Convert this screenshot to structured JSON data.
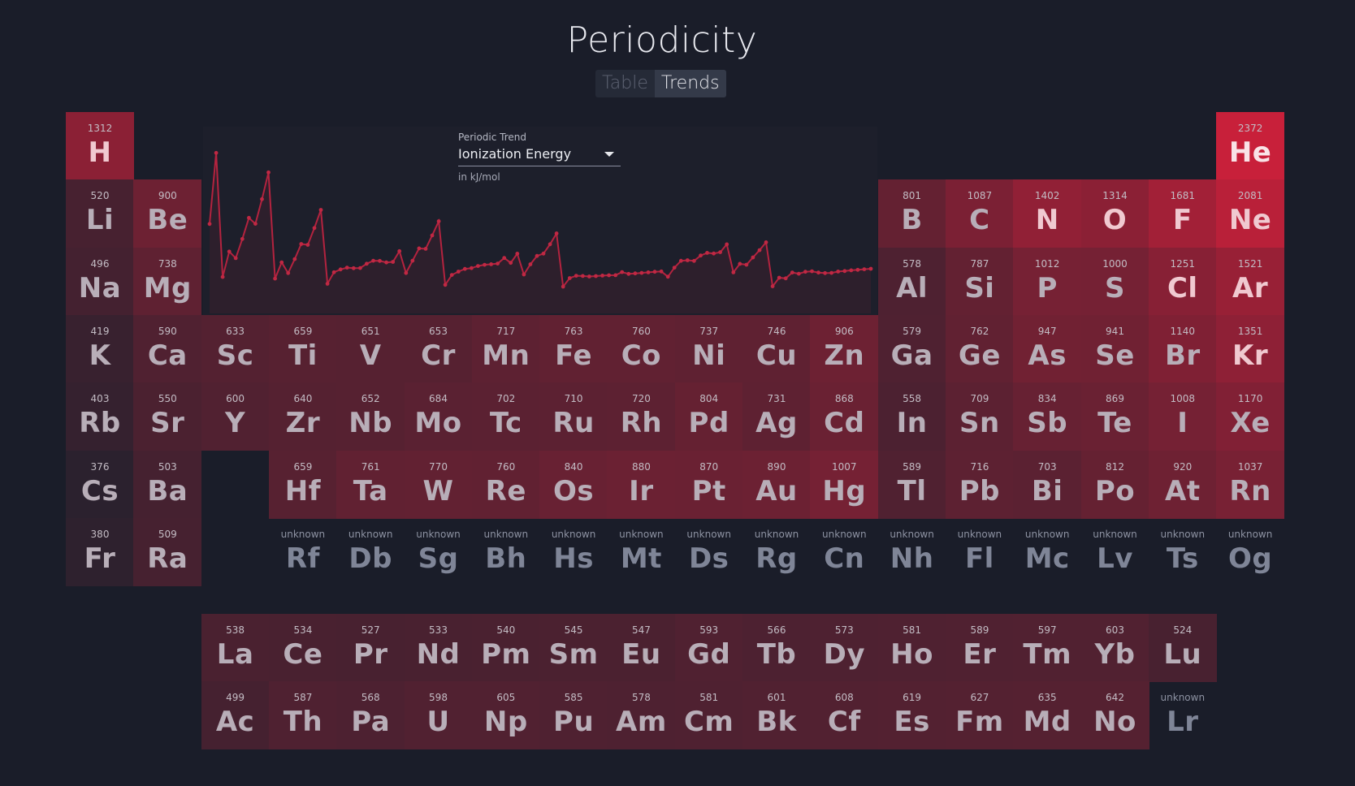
{
  "app": {
    "title": "Periodicity"
  },
  "tabs": [
    {
      "label": "Table"
    },
    {
      "label": "Trends"
    }
  ],
  "trend_selector": {
    "label": "Periodic Trend",
    "value": "Ionization Energy",
    "unit": "in kJ/mol"
  },
  "colors": {
    "background": "#1a1d29",
    "accent": "#c8203a"
  },
  "elements": [
    {
      "s": "H",
      "v": "1312",
      "r": 1,
      "c": 1
    },
    {
      "s": "He",
      "v": "2372",
      "r": 1,
      "c": 18
    },
    {
      "s": "Li",
      "v": "520",
      "r": 2,
      "c": 1
    },
    {
      "s": "Be",
      "v": "900",
      "r": 2,
      "c": 2
    },
    {
      "s": "B",
      "v": "801",
      "r": 2,
      "c": 13
    },
    {
      "s": "C",
      "v": "1087",
      "r": 2,
      "c": 14
    },
    {
      "s": "N",
      "v": "1402",
      "r": 2,
      "c": 15
    },
    {
      "s": "O",
      "v": "1314",
      "r": 2,
      "c": 16
    },
    {
      "s": "F",
      "v": "1681",
      "r": 2,
      "c": 17
    },
    {
      "s": "Ne",
      "v": "2081",
      "r": 2,
      "c": 18
    },
    {
      "s": "Na",
      "v": "496",
      "r": 3,
      "c": 1
    },
    {
      "s": "Mg",
      "v": "738",
      "r": 3,
      "c": 2
    },
    {
      "s": "Al",
      "v": "578",
      "r": 3,
      "c": 13
    },
    {
      "s": "Si",
      "v": "787",
      "r": 3,
      "c": 14
    },
    {
      "s": "P",
      "v": "1012",
      "r": 3,
      "c": 15
    },
    {
      "s": "S",
      "v": "1000",
      "r": 3,
      "c": 16
    },
    {
      "s": "Cl",
      "v": "1251",
      "r": 3,
      "c": 17
    },
    {
      "s": "Ar",
      "v": "1521",
      "r": 3,
      "c": 18
    },
    {
      "s": "K",
      "v": "419",
      "r": 4,
      "c": 1
    },
    {
      "s": "Ca",
      "v": "590",
      "r": 4,
      "c": 2
    },
    {
      "s": "Sc",
      "v": "633",
      "r": 4,
      "c": 3
    },
    {
      "s": "Ti",
      "v": "659",
      "r": 4,
      "c": 4
    },
    {
      "s": "V",
      "v": "651",
      "r": 4,
      "c": 5
    },
    {
      "s": "Cr",
      "v": "653",
      "r": 4,
      "c": 6
    },
    {
      "s": "Mn",
      "v": "717",
      "r": 4,
      "c": 7
    },
    {
      "s": "Fe",
      "v": "763",
      "r": 4,
      "c": 8
    },
    {
      "s": "Co",
      "v": "760",
      "r": 4,
      "c": 9
    },
    {
      "s": "Ni",
      "v": "737",
      "r": 4,
      "c": 10
    },
    {
      "s": "Cu",
      "v": "746",
      "r": 4,
      "c": 11
    },
    {
      "s": "Zn",
      "v": "906",
      "r": 4,
      "c": 12
    },
    {
      "s": "Ga",
      "v": "579",
      "r": 4,
      "c": 13
    },
    {
      "s": "Ge",
      "v": "762",
      "r": 4,
      "c": 14
    },
    {
      "s": "As",
      "v": "947",
      "r": 4,
      "c": 15
    },
    {
      "s": "Se",
      "v": "941",
      "r": 4,
      "c": 16
    },
    {
      "s": "Br",
      "v": "1140",
      "r": 4,
      "c": 17
    },
    {
      "s": "Kr",
      "v": "1351",
      "r": 4,
      "c": 18
    },
    {
      "s": "Rb",
      "v": "403",
      "r": 5,
      "c": 1
    },
    {
      "s": "Sr",
      "v": "550",
      "r": 5,
      "c": 2
    },
    {
      "s": "Y",
      "v": "600",
      "r": 5,
      "c": 3
    },
    {
      "s": "Zr",
      "v": "640",
      "r": 5,
      "c": 4
    },
    {
      "s": "Nb",
      "v": "652",
      "r": 5,
      "c": 5
    },
    {
      "s": "Mo",
      "v": "684",
      "r": 5,
      "c": 6
    },
    {
      "s": "Tc",
      "v": "702",
      "r": 5,
      "c": 7
    },
    {
      "s": "Ru",
      "v": "710",
      "r": 5,
      "c": 8
    },
    {
      "s": "Rh",
      "v": "720",
      "r": 5,
      "c": 9
    },
    {
      "s": "Pd",
      "v": "804",
      "r": 5,
      "c": 10
    },
    {
      "s": "Ag",
      "v": "731",
      "r": 5,
      "c": 11
    },
    {
      "s": "Cd",
      "v": "868",
      "r": 5,
      "c": 12
    },
    {
      "s": "In",
      "v": "558",
      "r": 5,
      "c": 13
    },
    {
      "s": "Sn",
      "v": "709",
      "r": 5,
      "c": 14
    },
    {
      "s": "Sb",
      "v": "834",
      "r": 5,
      "c": 15
    },
    {
      "s": "Te",
      "v": "869",
      "r": 5,
      "c": 16
    },
    {
      "s": "I",
      "v": "1008",
      "r": 5,
      "c": 17
    },
    {
      "s": "Xe",
      "v": "1170",
      "r": 5,
      "c": 18
    },
    {
      "s": "Cs",
      "v": "376",
      "r": 6,
      "c": 1
    },
    {
      "s": "Ba",
      "v": "503",
      "r": 6,
      "c": 2
    },
    {
      "s": "Hf",
      "v": "659",
      "r": 6,
      "c": 4
    },
    {
      "s": "Ta",
      "v": "761",
      "r": 6,
      "c": 5
    },
    {
      "s": "W",
      "v": "770",
      "r": 6,
      "c": 6
    },
    {
      "s": "Re",
      "v": "760",
      "r": 6,
      "c": 7
    },
    {
      "s": "Os",
      "v": "840",
      "r": 6,
      "c": 8
    },
    {
      "s": "Ir",
      "v": "880",
      "r": 6,
      "c": 9
    },
    {
      "s": "Pt",
      "v": "870",
      "r": 6,
      "c": 10
    },
    {
      "s": "Au",
      "v": "890",
      "r": 6,
      "c": 11
    },
    {
      "s": "Hg",
      "v": "1007",
      "r": 6,
      "c": 12
    },
    {
      "s": "Tl",
      "v": "589",
      "r": 6,
      "c": 13
    },
    {
      "s": "Pb",
      "v": "716",
      "r": 6,
      "c": 14
    },
    {
      "s": "Bi",
      "v": "703",
      "r": 6,
      "c": 15
    },
    {
      "s": "Po",
      "v": "812",
      "r": 6,
      "c": 16
    },
    {
      "s": "At",
      "v": "920",
      "r": 6,
      "c": 17
    },
    {
      "s": "Rn",
      "v": "1037",
      "r": 6,
      "c": 18
    },
    {
      "s": "Fr",
      "v": "380",
      "r": 7,
      "c": 1
    },
    {
      "s": "Ra",
      "v": "509",
      "r": 7,
      "c": 2
    },
    {
      "s": "Rf",
      "v": "unknown",
      "r": 7,
      "c": 4
    },
    {
      "s": "Db",
      "v": "unknown",
      "r": 7,
      "c": 5
    },
    {
      "s": "Sg",
      "v": "unknown",
      "r": 7,
      "c": 6
    },
    {
      "s": "Bh",
      "v": "unknown",
      "r": 7,
      "c": 7
    },
    {
      "s": "Hs",
      "v": "unknown",
      "r": 7,
      "c": 8
    },
    {
      "s": "Mt",
      "v": "unknown",
      "r": 7,
      "c": 9
    },
    {
      "s": "Ds",
      "v": "unknown",
      "r": 7,
      "c": 10
    },
    {
      "s": "Rg",
      "v": "unknown",
      "r": 7,
      "c": 11
    },
    {
      "s": "Cn",
      "v": "unknown",
      "r": 7,
      "c": 12
    },
    {
      "s": "Nh",
      "v": "unknown",
      "r": 7,
      "c": 13
    },
    {
      "s": "Fl",
      "v": "unknown",
      "r": 7,
      "c": 14
    },
    {
      "s": "Mc",
      "v": "unknown",
      "r": 7,
      "c": 15
    },
    {
      "s": "Lv",
      "v": "unknown",
      "r": 7,
      "c": 16
    },
    {
      "s": "Ts",
      "v": "unknown",
      "r": 7,
      "c": 17
    },
    {
      "s": "Og",
      "v": "unknown",
      "r": 7,
      "c": 18
    },
    {
      "s": "La",
      "v": "538",
      "r": 9,
      "c": 3
    },
    {
      "s": "Ce",
      "v": "534",
      "r": 9,
      "c": 4
    },
    {
      "s": "Pr",
      "v": "527",
      "r": 9,
      "c": 5
    },
    {
      "s": "Nd",
      "v": "533",
      "r": 9,
      "c": 6
    },
    {
      "s": "Pm",
      "v": "540",
      "r": 9,
      "c": 7
    },
    {
      "s": "Sm",
      "v": "545",
      "r": 9,
      "c": 8
    },
    {
      "s": "Eu",
      "v": "547",
      "r": 9,
      "c": 9
    },
    {
      "s": "Gd",
      "v": "593",
      "r": 9,
      "c": 10
    },
    {
      "s": "Tb",
      "v": "566",
      "r": 9,
      "c": 11
    },
    {
      "s": "Dy",
      "v": "573",
      "r": 9,
      "c": 12
    },
    {
      "s": "Ho",
      "v": "581",
      "r": 9,
      "c": 13
    },
    {
      "s": "Er",
      "v": "589",
      "r": 9,
      "c": 14
    },
    {
      "s": "Tm",
      "v": "597",
      "r": 9,
      "c": 15
    },
    {
      "s": "Yb",
      "v": "603",
      "r": 9,
      "c": 16
    },
    {
      "s": "Lu",
      "v": "524",
      "r": 9,
      "c": 17
    },
    {
      "s": "Ac",
      "v": "499",
      "r": 10,
      "c": 3
    },
    {
      "s": "Th",
      "v": "587",
      "r": 10,
      "c": 4
    },
    {
      "s": "Pa",
      "v": "568",
      "r": 10,
      "c": 5
    },
    {
      "s": "U",
      "v": "598",
      "r": 10,
      "c": 6
    },
    {
      "s": "Np",
      "v": "605",
      "r": 10,
      "c": 7
    },
    {
      "s": "Pu",
      "v": "585",
      "r": 10,
      "c": 8
    },
    {
      "s": "Am",
      "v": "578",
      "r": 10,
      "c": 9
    },
    {
      "s": "Cm",
      "v": "581",
      "r": 10,
      "c": 10
    },
    {
      "s": "Bk",
      "v": "601",
      "r": 10,
      "c": 11
    },
    {
      "s": "Cf",
      "v": "608",
      "r": 10,
      "c": 12
    },
    {
      "s": "Es",
      "v": "619",
      "r": 10,
      "c": 13
    },
    {
      "s": "Fm",
      "v": "627",
      "r": 10,
      "c": 14
    },
    {
      "s": "Md",
      "v": "635",
      "r": 10,
      "c": 15
    },
    {
      "s": "No",
      "v": "642",
      "r": 10,
      "c": 16
    },
    {
      "s": "Lr",
      "v": "unknown",
      "r": 10,
      "c": 17
    }
  ],
  "chart_data": {
    "type": "line",
    "title": "",
    "xlabel": "",
    "ylabel": "",
    "ylim": [
      0,
      2400
    ],
    "x": [
      1,
      2,
      3,
      4,
      5,
      6,
      7,
      8,
      9,
      10,
      11,
      12,
      13,
      14,
      15,
      16,
      17,
      18,
      19,
      20,
      21,
      22,
      23,
      24,
      25,
      26,
      27,
      28,
      29,
      30,
      31,
      32,
      33,
      34,
      35,
      36,
      37,
      38,
      39,
      40,
      41,
      42,
      43,
      44,
      45,
      46,
      47,
      48,
      49,
      50,
      51,
      52,
      53,
      54,
      55,
      56,
      57,
      58,
      59,
      60,
      61,
      62,
      63,
      64,
      65,
      66,
      67,
      68,
      69,
      70,
      71,
      72,
      73,
      74,
      75,
      76,
      77,
      78,
      79,
      80,
      81,
      82,
      83,
      84,
      85,
      86,
      87,
      88,
      89,
      90,
      91,
      92,
      93,
      94,
      95,
      96,
      97,
      98,
      99,
      100,
      101,
      102
    ],
    "values": [
      1312,
      2372,
      520,
      900,
      801,
      1087,
      1402,
      1314,
      1681,
      2081,
      496,
      738,
      578,
      787,
      1012,
      1000,
      1251,
      1521,
      419,
      590,
      633,
      659,
      651,
      653,
      717,
      763,
      760,
      737,
      746,
      906,
      579,
      762,
      947,
      941,
      1140,
      1351,
      403,
      550,
      600,
      640,
      652,
      684,
      702,
      710,
      720,
      804,
      731,
      868,
      558,
      709,
      834,
      869,
      1008,
      1170,
      376,
      503,
      538,
      534,
      527,
      533,
      540,
      545,
      547,
      593,
      566,
      573,
      581,
      589,
      597,
      603,
      524,
      659,
      761,
      770,
      760,
      840,
      880,
      870,
      890,
      1007,
      589,
      716,
      703,
      812,
      920,
      1037,
      380,
      509,
      499,
      587,
      568,
      598,
      605,
      585,
      578,
      581,
      601,
      608,
      619,
      627,
      635,
      642
    ]
  }
}
